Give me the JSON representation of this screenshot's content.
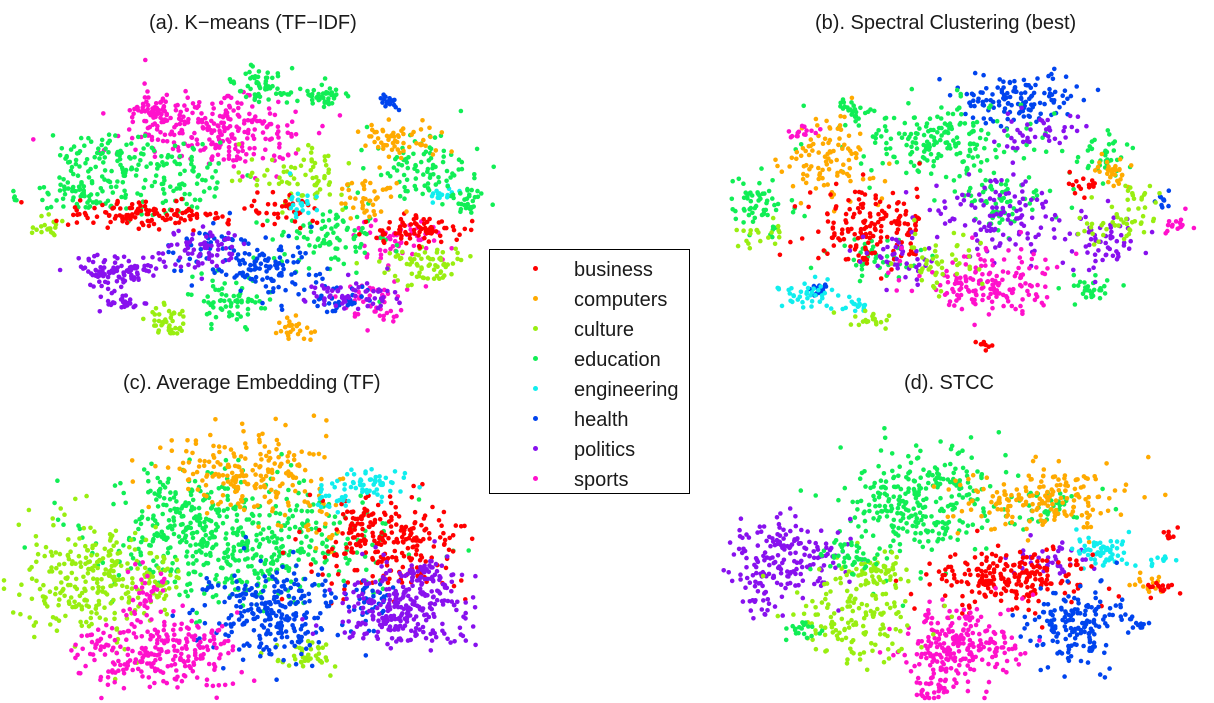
{
  "categories": [
    {
      "label": "business",
      "color": "#ff0000"
    },
    {
      "label": "computers",
      "color": "#ffaa00"
    },
    {
      "label": "culture",
      "color": "#99ee11"
    },
    {
      "label": "education",
      "color": "#11ee55"
    },
    {
      "label": "engineering",
      "color": "#11eeee"
    },
    {
      "label": "health",
      "color": "#0044ee"
    },
    {
      "label": "politics",
      "color": "#8811ee"
    },
    {
      "label": "sports",
      "color": "#ff11cc"
    }
  ],
  "chart_data": [
    {
      "type": "scatter",
      "title": "(a). K−means (TF−IDF)",
      "axes": "none",
      "series_names": [
        "business",
        "computers",
        "culture",
        "education",
        "engineering",
        "health",
        "politics",
        "sports"
      ]
    },
    {
      "type": "scatter",
      "title": "(b). Spectral Clustering (best)",
      "axes": "none",
      "series_names": [
        "business",
        "computers",
        "culture",
        "education",
        "engineering",
        "health",
        "politics",
        "sports"
      ]
    },
    {
      "type": "scatter",
      "title": "(c). Average Embedding (TF)",
      "axes": "none",
      "series_names": [
        "business",
        "computers",
        "culture",
        "education",
        "engineering",
        "health",
        "politics",
        "sports"
      ]
    },
    {
      "type": "scatter",
      "title": "(d). STCC",
      "axes": "none",
      "series_names": [
        "business",
        "computers",
        "culture",
        "education",
        "engineering",
        "health",
        "politics",
        "sports"
      ]
    }
  ],
  "legend": {
    "placement": "center"
  }
}
